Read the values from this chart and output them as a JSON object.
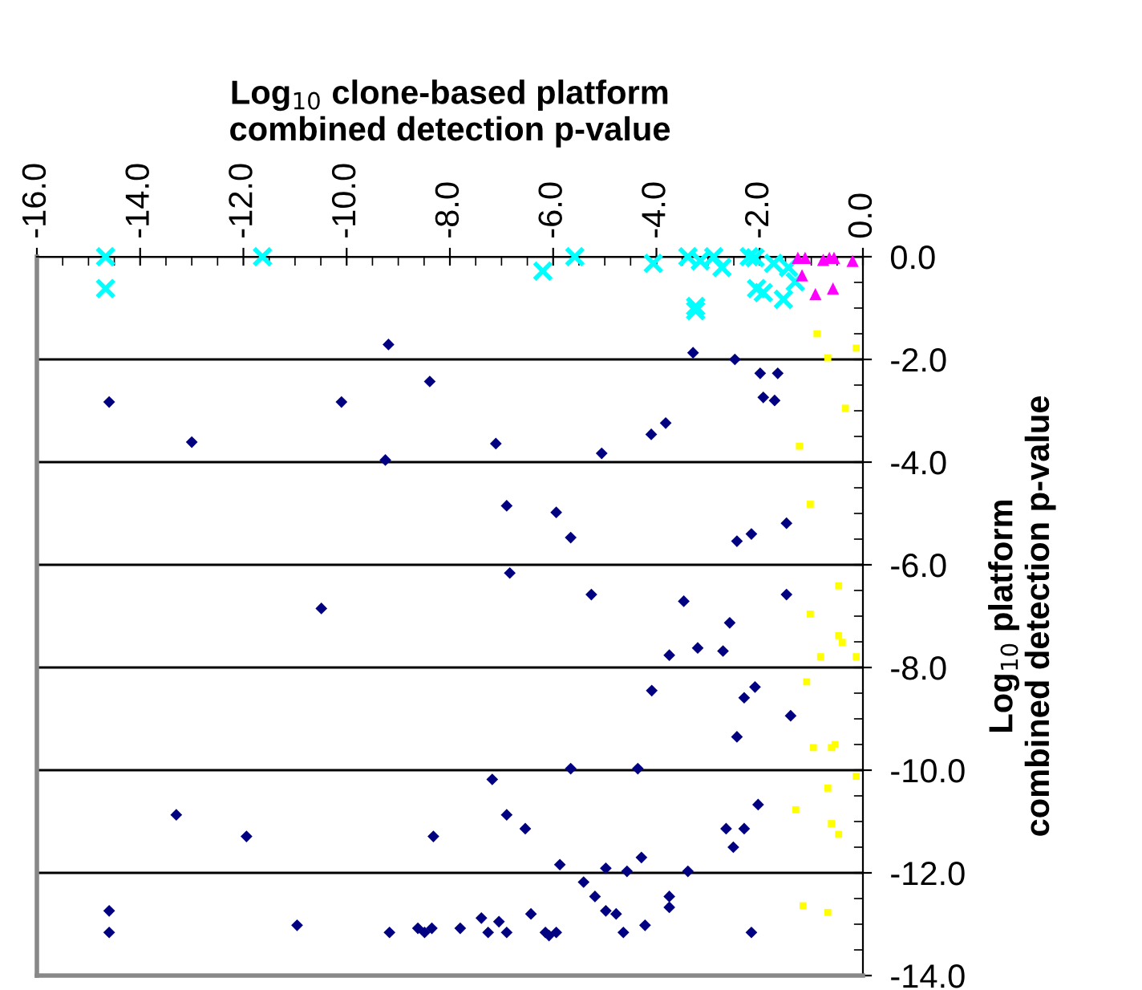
{
  "chart_data": {
    "type": "scatter",
    "xlabel": "Log$_{10}$ clone-based platform\ncombined detection p-value",
    "ylabel": "Log$_{10}$ platform\ncombined detection p-value",
    "xlim": [
      -16,
      0
    ],
    "ylim": [
      -14,
      0
    ],
    "xticks": [
      {
        "value": -16,
        "label": "-16.0"
      },
      {
        "value": -14,
        "label": "-14.0"
      },
      {
        "value": -12,
        "label": "-12.0"
      },
      {
        "value": -10,
        "label": "-10.0"
      },
      {
        "value": -8,
        "label": "-8.0"
      },
      {
        "value": -6,
        "label": "-6.0"
      },
      {
        "value": -4,
        "label": "-4.0"
      },
      {
        "value": -2,
        "label": "-2.0"
      },
      {
        "value": 0,
        "label": "0.0"
      }
    ],
    "yticks": [
      {
        "value": 0,
        "label": "0.0"
      },
      {
        "value": -2,
        "label": "-2.0"
      },
      {
        "value": -4,
        "label": "-4.0"
      },
      {
        "value": -6,
        "label": "-6.0"
      },
      {
        "value": -8,
        "label": "-8.0"
      },
      {
        "value": -10,
        "label": "-10.0"
      },
      {
        "value": -12,
        "label": "-12.0"
      },
      {
        "value": -14,
        "label": "-14.0"
      }
    ],
    "grid": "y",
    "legend": false,
    "series": [
      {
        "color": "#000080",
        "marker": "diamond",
        "x": [
          -9.19,
          -3.29,
          -2.48,
          -1.99,
          -1.65,
          -1.93,
          -1.71,
          -8.39,
          -14.6,
          -10.1,
          -13.0,
          -9.25,
          -7.11,
          -5.06,
          -4.1,
          -3.82,
          -6.9,
          -5.94,
          -5.66,
          -2.44,
          -2.16,
          -1.48,
          -6.84,
          -5.26,
          -3.47,
          -1.48,
          -2.58,
          -3.75,
          -3.2,
          -2.71,
          -4.09,
          -2.3,
          -2.09,
          -1.4,
          -2.44,
          -5.66,
          -4.36,
          -7.18,
          -6.9,
          -6.54,
          -8.32,
          -2.65,
          -2.3,
          -2.51,
          -2.03,
          -5.87,
          -4.98,
          -4.57,
          -4.29,
          -3.39,
          -5.41,
          -5.19,
          -4.98,
          -4.78,
          -3.75,
          -3.75,
          -4.64,
          -4.22,
          -2.16,
          -7.8,
          -7.39,
          -7.26,
          -7.05,
          -6.9,
          -6.43,
          -6.15,
          -6.08,
          -5.94,
          -10.49,
          -13.3,
          -11.94,
          -14.6,
          -14.6,
          -10.96,
          -9.17,
          -8.62,
          -8.49,
          -8.35
        ],
        "values": [
          -1.71,
          -1.87,
          -2.0,
          -2.27,
          -2.27,
          -2.74,
          -2.8,
          -2.43,
          -2.83,
          -2.83,
          -3.61,
          -3.96,
          -3.64,
          -3.83,
          -3.46,
          -3.24,
          -4.85,
          -4.98,
          -5.47,
          -5.54,
          -5.4,
          -5.19,
          -6.16,
          -6.58,
          -6.71,
          -6.58,
          -7.13,
          -7.76,
          -7.62,
          -7.68,
          -8.45,
          -8.59,
          -8.38,
          -8.94,
          -9.35,
          -9.97,
          -9.97,
          -10.18,
          -10.87,
          -11.14,
          -11.29,
          -11.14,
          -11.14,
          -11.5,
          -10.67,
          -11.84,
          -11.91,
          -11.97,
          -11.7,
          -11.97,
          -12.18,
          -12.46,
          -12.74,
          -12.8,
          -12.46,
          -12.67,
          -13.16,
          -13.02,
          -13.16,
          -13.08,
          -12.88,
          -13.16,
          -12.95,
          -13.16,
          -12.8,
          -13.16,
          -13.22,
          -13.16,
          -6.85,
          -10.87,
          -11.29,
          -12.74,
          -13.16,
          -13.02,
          -13.16,
          -13.08,
          -13.16,
          -13.08
        ]
      },
      {
        "color": "#00ffff",
        "marker": "cross",
        "x": [
          -14.67,
          -14.67,
          -11.63,
          -6.2,
          -5.58,
          -4.06,
          -3.39,
          -3.24,
          -3.24,
          -3.15,
          -2.89,
          -2.84,
          -2.73,
          -2.2,
          -2.09,
          -1.73,
          -1.44,
          -1.39,
          -1.31,
          -2.06,
          -1.93,
          -1.54
        ],
        "values": [
          0,
          -0.62,
          0,
          -0.28,
          0,
          -0.13,
          0,
          -0.97,
          -1.05,
          -0.08,
          0,
          null,
          -0.21,
          0,
          -0.02,
          -0.13,
          -0.21,
          null,
          -0.49,
          -0.62,
          -0.7,
          -0.83
        ]
      },
      {
        "color": "#ff00ff",
        "marker": "triangle",
        "x": [
          -1.26,
          -1.12,
          -1.18,
          -0.92,
          -0.58,
          -0.77,
          -0.65,
          -0.56,
          -0.2
        ],
        "values": [
          -0.02,
          -0.02,
          -0.36,
          -0.73,
          -0.62,
          -0.06,
          -0.02,
          -0.02,
          -0.08
        ]
      },
      {
        "color": "#ffff00",
        "marker": "square",
        "x": [
          -0.89,
          -0.68,
          -0.13,
          -0.34,
          -1.23,
          -1.02,
          -0.47,
          -1.02,
          -0.47,
          -0.4,
          -0.82,
          -0.13,
          -1.09,
          -0.96,
          -0.61,
          -0.54,
          -0.13,
          -0.68,
          -1.3,
          -0.61,
          -0.47,
          -1.16,
          -0.68
        ],
        "values": [
          -1.5,
          -1.97,
          -1.78,
          -2.95,
          -3.69,
          -4.82,
          -6.41,
          -6.96,
          -7.38,
          -7.51,
          -7.79,
          -7.79,
          -8.28,
          -9.56,
          -9.56,
          -9.5,
          -10.12,
          -10.35,
          -10.77,
          -11.04,
          -11.25,
          -12.64,
          -12.77
        ]
      }
    ]
  }
}
